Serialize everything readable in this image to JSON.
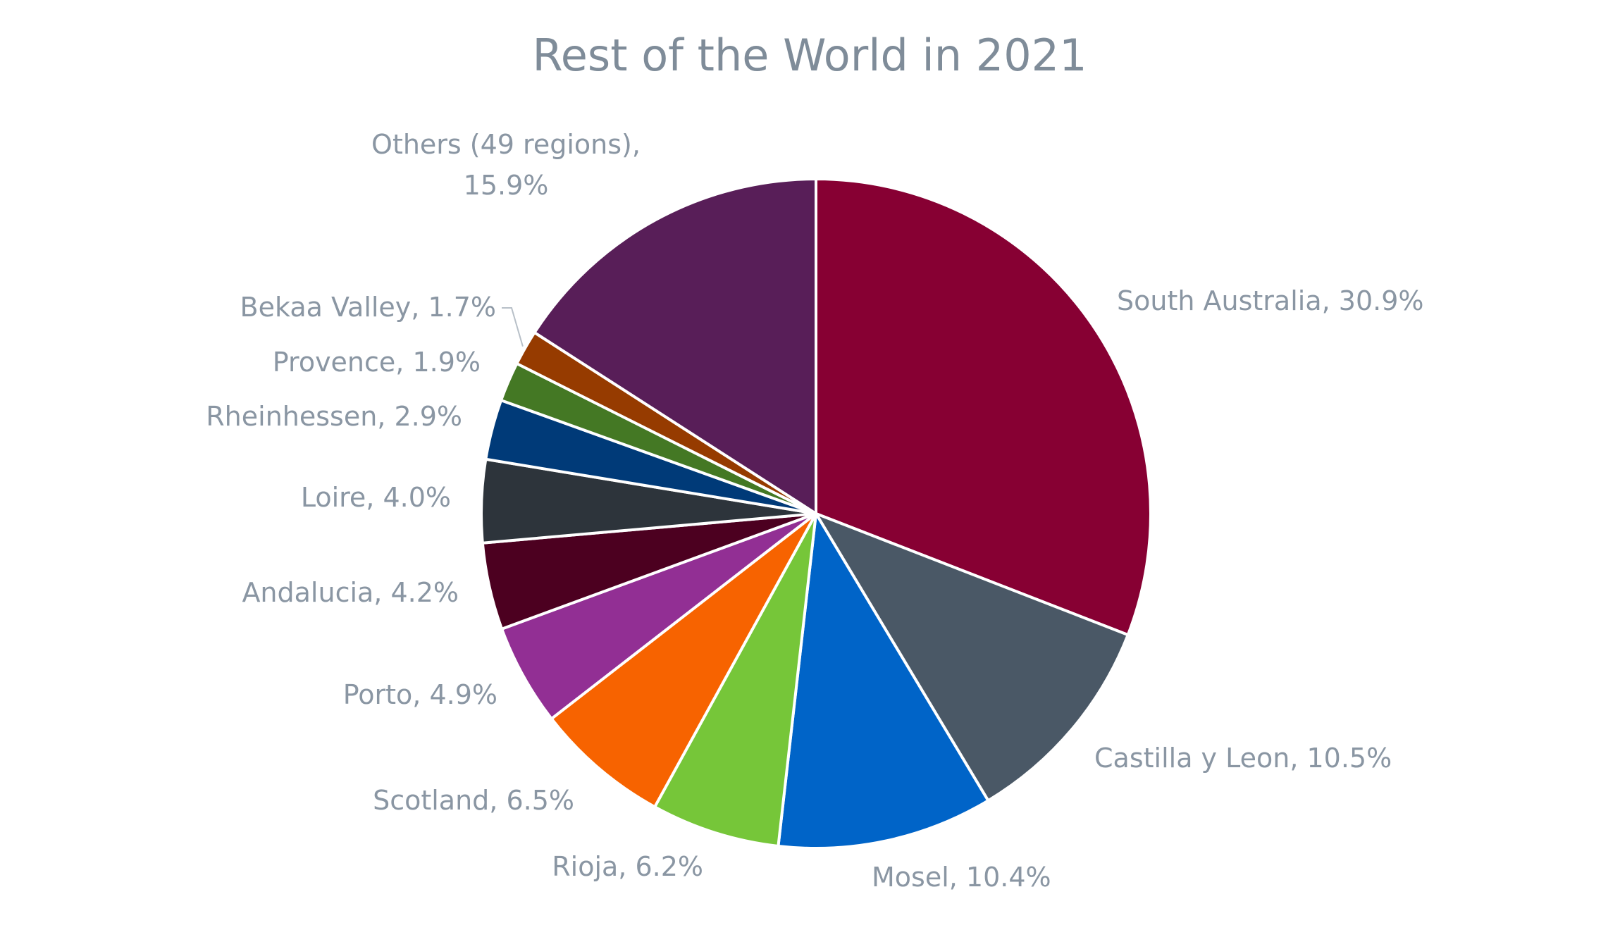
{
  "chart_data": {
    "type": "pie",
    "title": "Rest of the World in 2021",
    "slices": [
      {
        "label": "South Australia",
        "value": 30.9,
        "value_text": "30.9%",
        "color": "#870033"
      },
      {
        "label": "Castilla y Leon",
        "value": 10.5,
        "value_text": "10.5%",
        "color": "#4a5866"
      },
      {
        "label": "Mosel",
        "value": 10.4,
        "value_text": "10.4%",
        "color": "#0064c8"
      },
      {
        "label": "Rioja",
        "value": 6.2,
        "value_text": "6.2%",
        "color": "#76c639"
      },
      {
        "label": "Scotland",
        "value": 6.5,
        "value_text": "6.5%",
        "color": "#f76300"
      },
      {
        "label": "Porto",
        "value": 4.9,
        "value_text": "4.9%",
        "color": "#922f94"
      },
      {
        "label": "Andalucia",
        "value": 4.2,
        "value_text": "4.2%",
        "color": "#4c0020"
      },
      {
        "label": "Loire",
        "value": 4.0,
        "value_text": "4.0%",
        "color": "#2d343b"
      },
      {
        "label": "Rheinhessen",
        "value": 2.9,
        "value_text": "2.9%",
        "color": "#003a78"
      },
      {
        "label": "Provence",
        "value": 1.9,
        "value_text": "1.9%",
        "color": "#447824"
      },
      {
        "label": "Bekaa Valley",
        "value": 1.7,
        "value_text": "1.7%",
        "color": "#963b00"
      },
      {
        "label": "Others (49 regions)",
        "value": 15.9,
        "value_text": "15.9%",
        "color": "#581e58"
      }
    ]
  }
}
